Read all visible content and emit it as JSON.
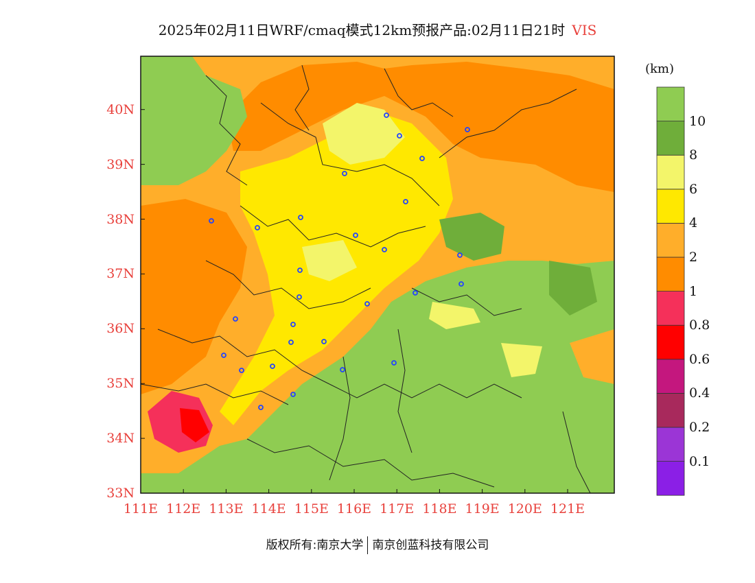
{
  "title": {
    "text": "2025年02月11日WRF/cmaq模式12km预报产品:02月11日21时",
    "variable": "VIS"
  },
  "legend": {
    "unit": "(km)",
    "colors": [
      "#8b1fe6",
      "#9b35d6",
      "#a8295c",
      "#c4177e",
      "#ff0000",
      "#f5305a",
      "#ff8c00",
      "#ffae2a",
      "#ffe800",
      "#f3f56a",
      "#6fae3a",
      "#8fcc52"
    ],
    "labels": [
      "0.1",
      "0.2",
      "0.4",
      "0.6",
      "0.8",
      "1",
      "2",
      "4",
      "6",
      "8",
      "10"
    ]
  },
  "axes": {
    "x_ticks": [
      "111E",
      "112E",
      "113E",
      "114E",
      "115E",
      "116E",
      "117E",
      "118E",
      "119E",
      "120E",
      "121E"
    ],
    "y_ticks": [
      "33N",
      "34N",
      "35N",
      "36N",
      "37N",
      "38N",
      "39N",
      "40N"
    ]
  },
  "map_colors": {
    "green": "#8fcc52",
    "dark_green": "#6fae3a",
    "light_yellow": "#f3f56a",
    "yellow": "#ffe800",
    "light_orange": "#ffae2a",
    "orange": "#ff8c00",
    "pink": "#f5305a",
    "red": "#ff0000",
    "station_marker": "#2244ff"
  },
  "footer": {
    "left": "版权所有:南京大学",
    "right": "南京创蓝科技有限公司"
  }
}
